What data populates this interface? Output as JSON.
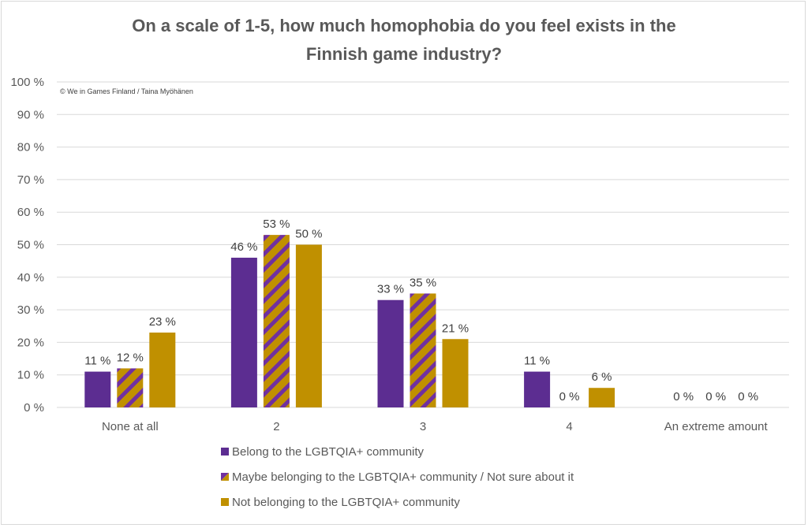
{
  "chart_data": {
    "type": "bar",
    "title_lines": [
      "On a scale of 1-5, how much homophobia do you feel exists in the",
      "Finnish game industry?"
    ],
    "credit": "© We in Games Finland / Taina Myöhänen",
    "xlabel": "",
    "ylabel": "",
    "ylim": [
      0,
      100
    ],
    "y_ticks": [
      0,
      10,
      20,
      30,
      40,
      50,
      60,
      70,
      80,
      90,
      100
    ],
    "y_tick_suffix": " %",
    "grid": true,
    "legend_position": "bottom",
    "categories": [
      "None at all",
      "2",
      "3",
      "4",
      "An extreme amount"
    ],
    "series": [
      {
        "name": "Belong to the LGBTQIA+ community",
        "color": "#5c2d91",
        "pattern": "solid",
        "values": [
          11,
          46,
          33,
          11,
          0
        ]
      },
      {
        "name": "Maybe belonging to the LGBTQIA+ community / Not sure about it",
        "color": "#c09000",
        "stripe_color": "#7030a0",
        "pattern": "diagonal-stripes",
        "values": [
          12,
          53,
          35,
          0,
          0
        ]
      },
      {
        "name": "Not belonging to the LGBTQIA+ community",
        "color": "#c09000",
        "pattern": "solid",
        "values": [
          23,
          50,
          21,
          6,
          0
        ]
      }
    ],
    "data_label_suffix": " %"
  }
}
